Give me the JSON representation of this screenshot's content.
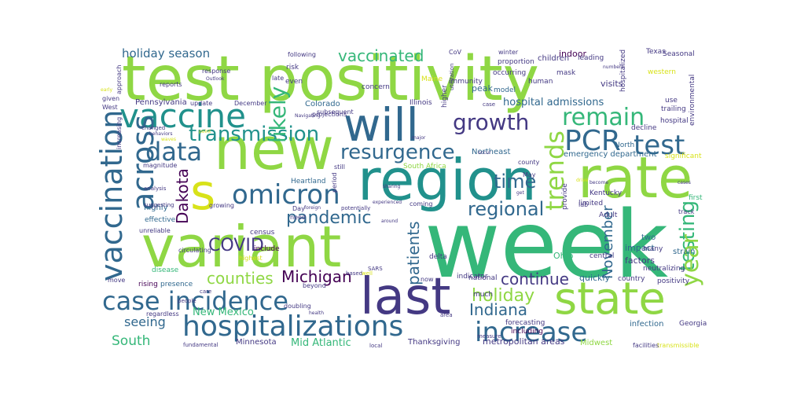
{
  "palette": {
    "lime": "#8fd744",
    "green": "#35b779",
    "teal": "#21918c",
    "blue": "#31688e",
    "indigo": "#443983",
    "purple": "#440154",
    "yellow": "#d8e219"
  },
  "words": {
    "w01": "test positivity",
    "w02": "week",
    "w03": "variant",
    "w04": "new",
    "w05": "region",
    "w06": "rate",
    "w07": "will",
    "w08": "last",
    "w09": "state",
    "w10": "s",
    "w11": "vaccine",
    "w12": "hospitalizations",
    "w13": "case incidence",
    "w14": "increase",
    "w15": "vaccination",
    "w16": "across",
    "w17": "omicron",
    "w18": "PCR",
    "w19": "test",
    "w20": "trends",
    "w21": "data",
    "w22": "resurgence",
    "w23": "growth",
    "w24": "remain",
    "w25": "transmission",
    "w26": "likely",
    "w27": "pandemic",
    "w28": "regional",
    "w29": "time",
    "w30": "testing",
    "w31": "year",
    "w32": "COVID",
    "w33": "Michigan",
    "w34": "counties",
    "w35": "holiday",
    "w36": "Indiana",
    "w37": "continue",
    "w38": "patients",
    "w39": "November",
    "w40": "Dakota",
    "w41": "vaccinated",
    "w42": "holiday season",
    "w43": "hospital admissions",
    "w44": "seeing",
    "w45": "South",
    "w46": "New Mexico",
    "w47": "Mid Atlantic",
    "w48": "metropolitan areas",
    "w49": "Minnesota",
    "w50": "Thanksgiving",
    "w51": "emergency department",
    "w52": "Colorado",
    "w53": "Northeast",
    "w54": "Pennsylvania",
    "w55": "children",
    "w56": "indoor",
    "w57": "peak",
    "w58": "visits",
    "w59": "model",
    "w60": "impact",
    "w61": "factors",
    "w62": "two",
    "w63": "strain",
    "w64": "Ohio",
    "w65": "quickly",
    "w66": "country",
    "w67": "positivity",
    "w68": "hospital",
    "w69": "North",
    "w70": "Heartland",
    "w71": "South Africa",
    "w72": "census",
    "w73": "include",
    "w74": "disease",
    "w75": "highly",
    "w76": "effective",
    "w77": "rising",
    "w78": "presence",
    "w79": "infection",
    "w80": "Midwest",
    "w81": "Georgia",
    "w82": "forecasting",
    "w83": "including",
    "w84": "national",
    "w85": "indicator",
    "w86": "delta",
    "w87": "much",
    "w88": "central",
    "w89": "neutralizing",
    "w90": "Kentucky",
    "w91": "limited",
    "w92": "Adult",
    "w93": "provide",
    "w94": "decline",
    "w95": "Texas",
    "w96": "Seasonal",
    "w97": "western",
    "w98": "first",
    "w99": "many",
    "w100": "environmental",
    "w101": "significant",
    "w102": "trailing",
    "w103": "use",
    "w104": "transmissible",
    "w105": "facilities",
    "w106": "lab",
    "w107": "Illinois",
    "w108": "Maine",
    "w109": "immunity",
    "w110": "human",
    "w111": "proportion",
    "w112": "leading",
    "w113": "hospitalized",
    "w114": "winter",
    "w115": "mask",
    "w116": "occurring",
    "w117": "concern",
    "w118": "higher",
    "w119": "CoV",
    "w120": "utilization",
    "w121": "following",
    "w122": "risk",
    "w123": "late",
    "w124": "even",
    "w125": "response",
    "w126": "Outlook",
    "w127": "reports",
    "w128": "update",
    "w129": "December",
    "w130": "projections",
    "w131": "subsequent",
    "w132": "Navigating",
    "w133": "West",
    "w134": "given",
    "w135": "increasing",
    "w136": "approach",
    "w137": "changed",
    "w138": "behaviors",
    "w139": "waves",
    "w140": "magnitude",
    "w141": "analysis",
    "w142": "suggesting",
    "w143": "growing",
    "w144": "circulating",
    "w145": "unreliable",
    "w146": "highest",
    "w147": "move",
    "w148": "regardless",
    "w149": "care",
    "w150": "people",
    "w151": "fundamental",
    "w152": "Day",
    "w153": "foreign",
    "w154": "need",
    "w155": "potentially",
    "w156": "SARS",
    "w157": "based",
    "w158": "well",
    "w159": "beyond",
    "w160": "doubling",
    "w161": "health",
    "w162": "local",
    "w163": "area",
    "w164": "measure",
    "w165": "period",
    "w166": "still",
    "w167": "coming",
    "w168": "experienced",
    "w169": "around",
    "w170": "May",
    "w171": "county",
    "w172": "case",
    "w173": "occur",
    "w174": "major",
    "w175": "point",
    "w176": "early",
    "w177": "cases",
    "w178": "become",
    "w179": "get",
    "w180": "numbers",
    "w181": "sharing",
    "w182": "drive",
    "w183": "track",
    "w184": "now"
  }
}
